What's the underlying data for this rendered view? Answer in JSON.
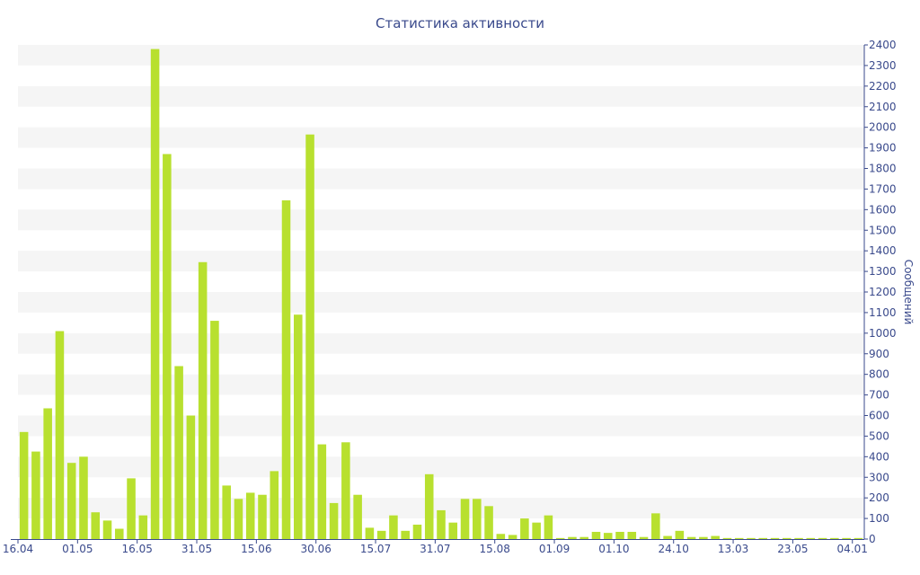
{
  "chart_data": {
    "type": "bar",
    "title": "Статистика активности",
    "ylabel": "Сообщений",
    "xlabel": "",
    "ylim": [
      0,
      2400
    ],
    "y_ticks": [
      0,
      100,
      200,
      300,
      400,
      500,
      600,
      700,
      800,
      900,
      1000,
      1100,
      1200,
      1300,
      1400,
      1500,
      1600,
      1700,
      1800,
      1900,
      2000,
      2100,
      2200,
      2300,
      2400
    ],
    "y_axis_side": "right",
    "x_tick_labels": [
      "16.04",
      "01.05",
      "16.05",
      "31.05",
      "15.06",
      "30.06",
      "15.07",
      "31.07",
      "15.08",
      "01.09",
      "01.10",
      "24.10",
      "13.03",
      "23.05",
      "04.01"
    ],
    "x_tick_label_bar_index": [
      0,
      5,
      10,
      15,
      20,
      25,
      30,
      35,
      40,
      45,
      50,
      55,
      60,
      65,
      70
    ],
    "grid": "alternating horizontal bands",
    "legend": "none",
    "values": [
      520,
      425,
      635,
      1010,
      370,
      400,
      130,
      90,
      50,
      295,
      115,
      2380,
      1870,
      840,
      600,
      1345,
      1060,
      260,
      195,
      225,
      215,
      330,
      1645,
      1090,
      1965,
      460,
      175,
      470,
      215,
      55,
      40,
      115,
      40,
      70,
      315,
      140,
      80,
      195,
      195,
      160,
      25,
      20,
      100,
      80,
      115,
      5,
      10,
      10,
      35,
      30,
      35,
      35,
      10,
      125,
      15,
      40,
      10,
      10,
      15,
      5,
      5,
      5,
      5,
      5,
      5,
      5,
      5,
      5,
      5,
      5,
      5
    ],
    "colors": {
      "bar": "#b8e02f",
      "band": "#f5f5f5",
      "text": "#3a4a8c",
      "axis": "#3a4a8c"
    }
  }
}
